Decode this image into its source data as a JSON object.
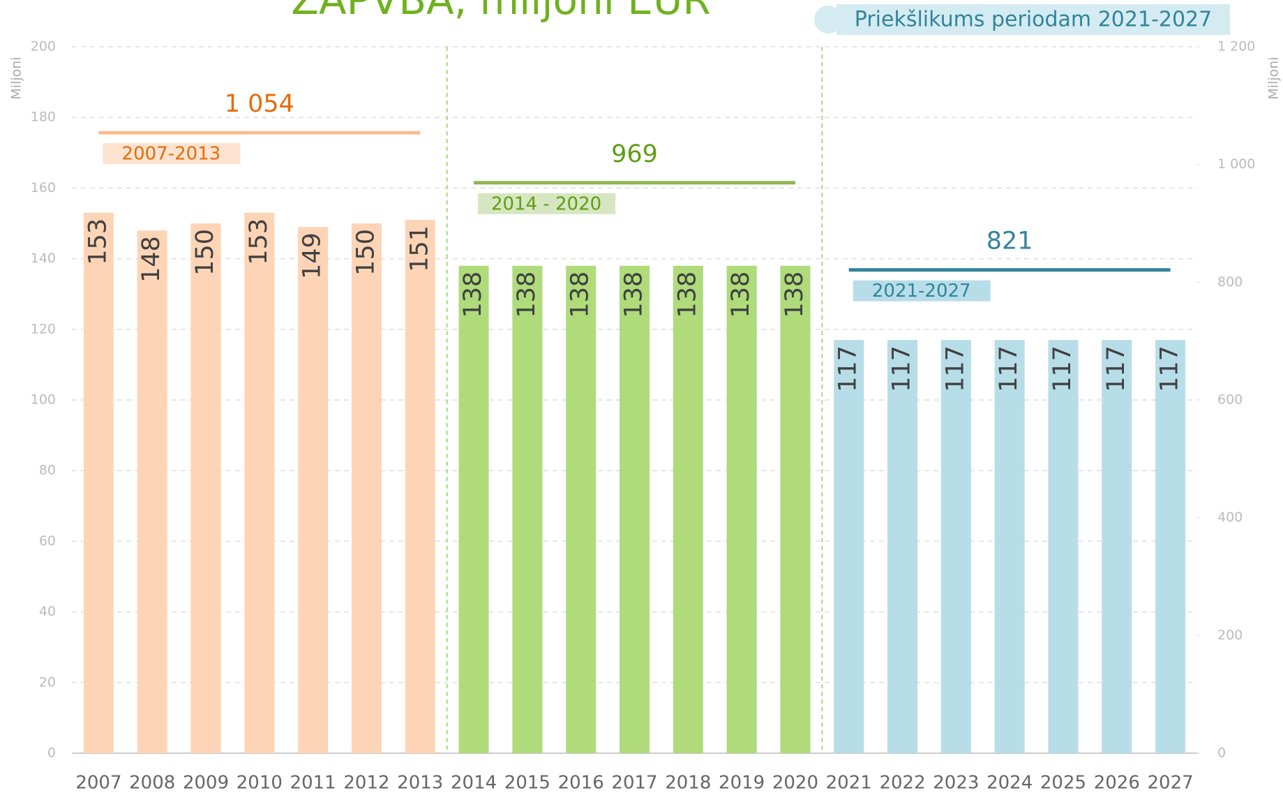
{
  "chart_data": {
    "type": "bar",
    "title": "ZAPVBA, miljoni EUR",
    "y_label": "Miljoni",
    "y2_label": "Miljoni",
    "categories": [
      "2007",
      "2008",
      "2009",
      "2010",
      "2011",
      "2012",
      "2013",
      "2014",
      "2015",
      "2016",
      "2017",
      "2018",
      "2019",
      "2020",
      "2021",
      "2022",
      "2023",
      "2024",
      "2025",
      "2026",
      "2027"
    ],
    "series": [
      {
        "name": "2007-2013",
        "color": "#fdd5b6",
        "line_color": "#f8bd8c",
        "text_color": "#e46c0a",
        "box_color": "#fde3d0",
        "values": [
          153,
          148,
          150,
          153,
          149,
          150,
          151,
          null,
          null,
          null,
          null,
          null,
          null,
          null,
          null,
          null,
          null,
          null,
          null,
          null,
          null
        ],
        "total": 1054,
        "total_label": "1 054"
      },
      {
        "name": "2014 - 2020",
        "color": "#afdb7b",
        "line_color": "#8db552",
        "text_color": "#5f9e12",
        "box_color": "#d6e6c0",
        "values": [
          null,
          null,
          null,
          null,
          null,
          null,
          null,
          138,
          138,
          138,
          138,
          138,
          138,
          138,
          null,
          null,
          null,
          null,
          null,
          null,
          null
        ],
        "total": 969,
        "total_label": "969"
      },
      {
        "name": "2021-2027",
        "color": "#b7dde8",
        "line_color": "#31849b",
        "text_color": "#31849b",
        "box_color": "#b7dde8",
        "values": [
          null,
          null,
          null,
          null,
          null,
          null,
          null,
          null,
          null,
          null,
          null,
          null,
          null,
          null,
          117,
          117,
          117,
          117,
          117,
          117,
          117
        ],
        "total": 821,
        "total_label": "821"
      }
    ],
    "legend": {
      "label": "Priekšlikums periodam 2021-2027",
      "color": "#d4ebf2"
    },
    "ylim": [
      0,
      200
    ],
    "yticks": [
      0,
      20,
      40,
      60,
      80,
      100,
      120,
      140,
      160,
      180,
      200
    ],
    "y2lim": [
      0,
      1200
    ],
    "y2ticks": [
      0,
      200,
      400,
      600,
      800,
      {
        "value": 1000,
        "label": "1 000"
      },
      {
        "value": 1200,
        "label": "1 200"
      }
    ],
    "grid": true
  }
}
